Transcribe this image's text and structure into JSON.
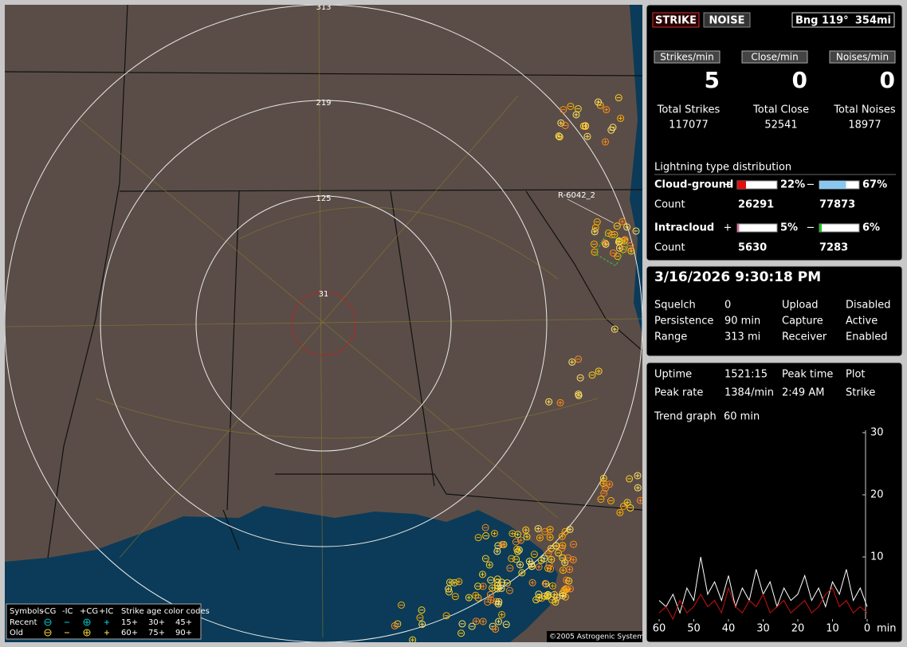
{
  "map": {
    "ring_labels": [
      "313",
      "219",
      "125",
      "31"
    ],
    "marker_label": "R-6042_2",
    "legend": {
      "symbols": "Symbols",
      "types": [
        "-CG",
        "-IC",
        "+CG",
        "+IC"
      ],
      "age_title": "Strike age color codes",
      "rows": [
        {
          "name": "Recent",
          "ages": [
            "15+",
            "30+",
            "45+"
          ]
        },
        {
          "name": "Old",
          "ages": [
            "60+",
            "75+",
            "90+"
          ]
        }
      ]
    },
    "copyright": "©2005 Astrogenic Systems"
  },
  "header": {
    "buttons": [
      "STRIKE",
      "NOISE"
    ],
    "bearing": "Bng 119°",
    "distance": "354mi"
  },
  "rates": [
    {
      "label": "Strikes/min",
      "value": 5,
      "total_label": "Total Strikes",
      "total": 117077
    },
    {
      "label": "Close/min",
      "value": 0,
      "total_label": "Total Close",
      "total": 52541
    },
    {
      "label": "Noises/min",
      "value": 0,
      "total_label": "Total Noises",
      "total": 18977
    }
  ],
  "distribution": {
    "title": "Lightning type distribution",
    "rows": [
      {
        "name": "Cloud-ground",
        "plus_sign": "+",
        "plus": 22,
        "plus_label": "22%",
        "minus_sign": "−",
        "minus": 67,
        "minus_label": "67%",
        "count_label": "Count",
        "plus_count": 26291,
        "minus_count": 77873
      },
      {
        "name": "Intracloud",
        "plus_sign": "+",
        "plus": 5,
        "plus_label": "5%",
        "minus_sign": "−",
        "minus": 6,
        "minus_label": "6%",
        "count_label": "Count",
        "plus_count": 5630,
        "minus_count": 7283
      }
    ]
  },
  "status": {
    "datetime": "3/16/2026 9:30:18 PM",
    "items": [
      {
        "label": "Squelch",
        "value": "0"
      },
      {
        "label": "Upload",
        "value": "Disabled"
      },
      {
        "label": "Persistence",
        "value": "90 min"
      },
      {
        "label": "Capture",
        "value": "Active"
      },
      {
        "label": "Range",
        "value": "313 mi"
      },
      {
        "label": "Receiver",
        "value": "Enabled"
      }
    ]
  },
  "stats": {
    "items": [
      {
        "label": "Uptime",
        "value": "1521:15"
      },
      {
        "label": "Peak time",
        "value": "2:49 AM"
      },
      {
        "label": "Plot",
        "value": "Strike"
      },
      {
        "label": "Peak rate",
        "value": "1384/min"
      },
      {
        "label": "Trend graph",
        "value": "60 min"
      }
    ]
  },
  "chart_data": {
    "type": "line",
    "xlabel": "min",
    "x": [
      60,
      58,
      56,
      54,
      52,
      50,
      48,
      46,
      44,
      42,
      40,
      38,
      36,
      34,
      32,
      30,
      28,
      26,
      24,
      22,
      20,
      18,
      16,
      14,
      12,
      10,
      8,
      6,
      4,
      2,
      0
    ],
    "xlim": [
      60,
      0
    ],
    "xticks": [
      60,
      50,
      40,
      30,
      20,
      10,
      0
    ],
    "ylim": [
      0,
      30
    ],
    "yticks": [
      10,
      20,
      30
    ],
    "series": [
      {
        "color": "#ffffff",
        "values": [
          3,
          2,
          4,
          1,
          5,
          3,
          10,
          4,
          6,
          3,
          7,
          2,
          5,
          3,
          8,
          4,
          6,
          2,
          5,
          3,
          4,
          7,
          3,
          5,
          2,
          6,
          4,
          8,
          3,
          5,
          2
        ]
      },
      {
        "color": "#cc1111",
        "values": [
          1,
          2,
          0,
          3,
          1,
          2,
          4,
          2,
          3,
          1,
          5,
          2,
          1,
          3,
          2,
          4,
          1,
          2,
          3,
          1,
          2,
          3,
          1,
          2,
          4,
          5,
          2,
          3,
          1,
          2,
          1
        ]
      }
    ]
  }
}
